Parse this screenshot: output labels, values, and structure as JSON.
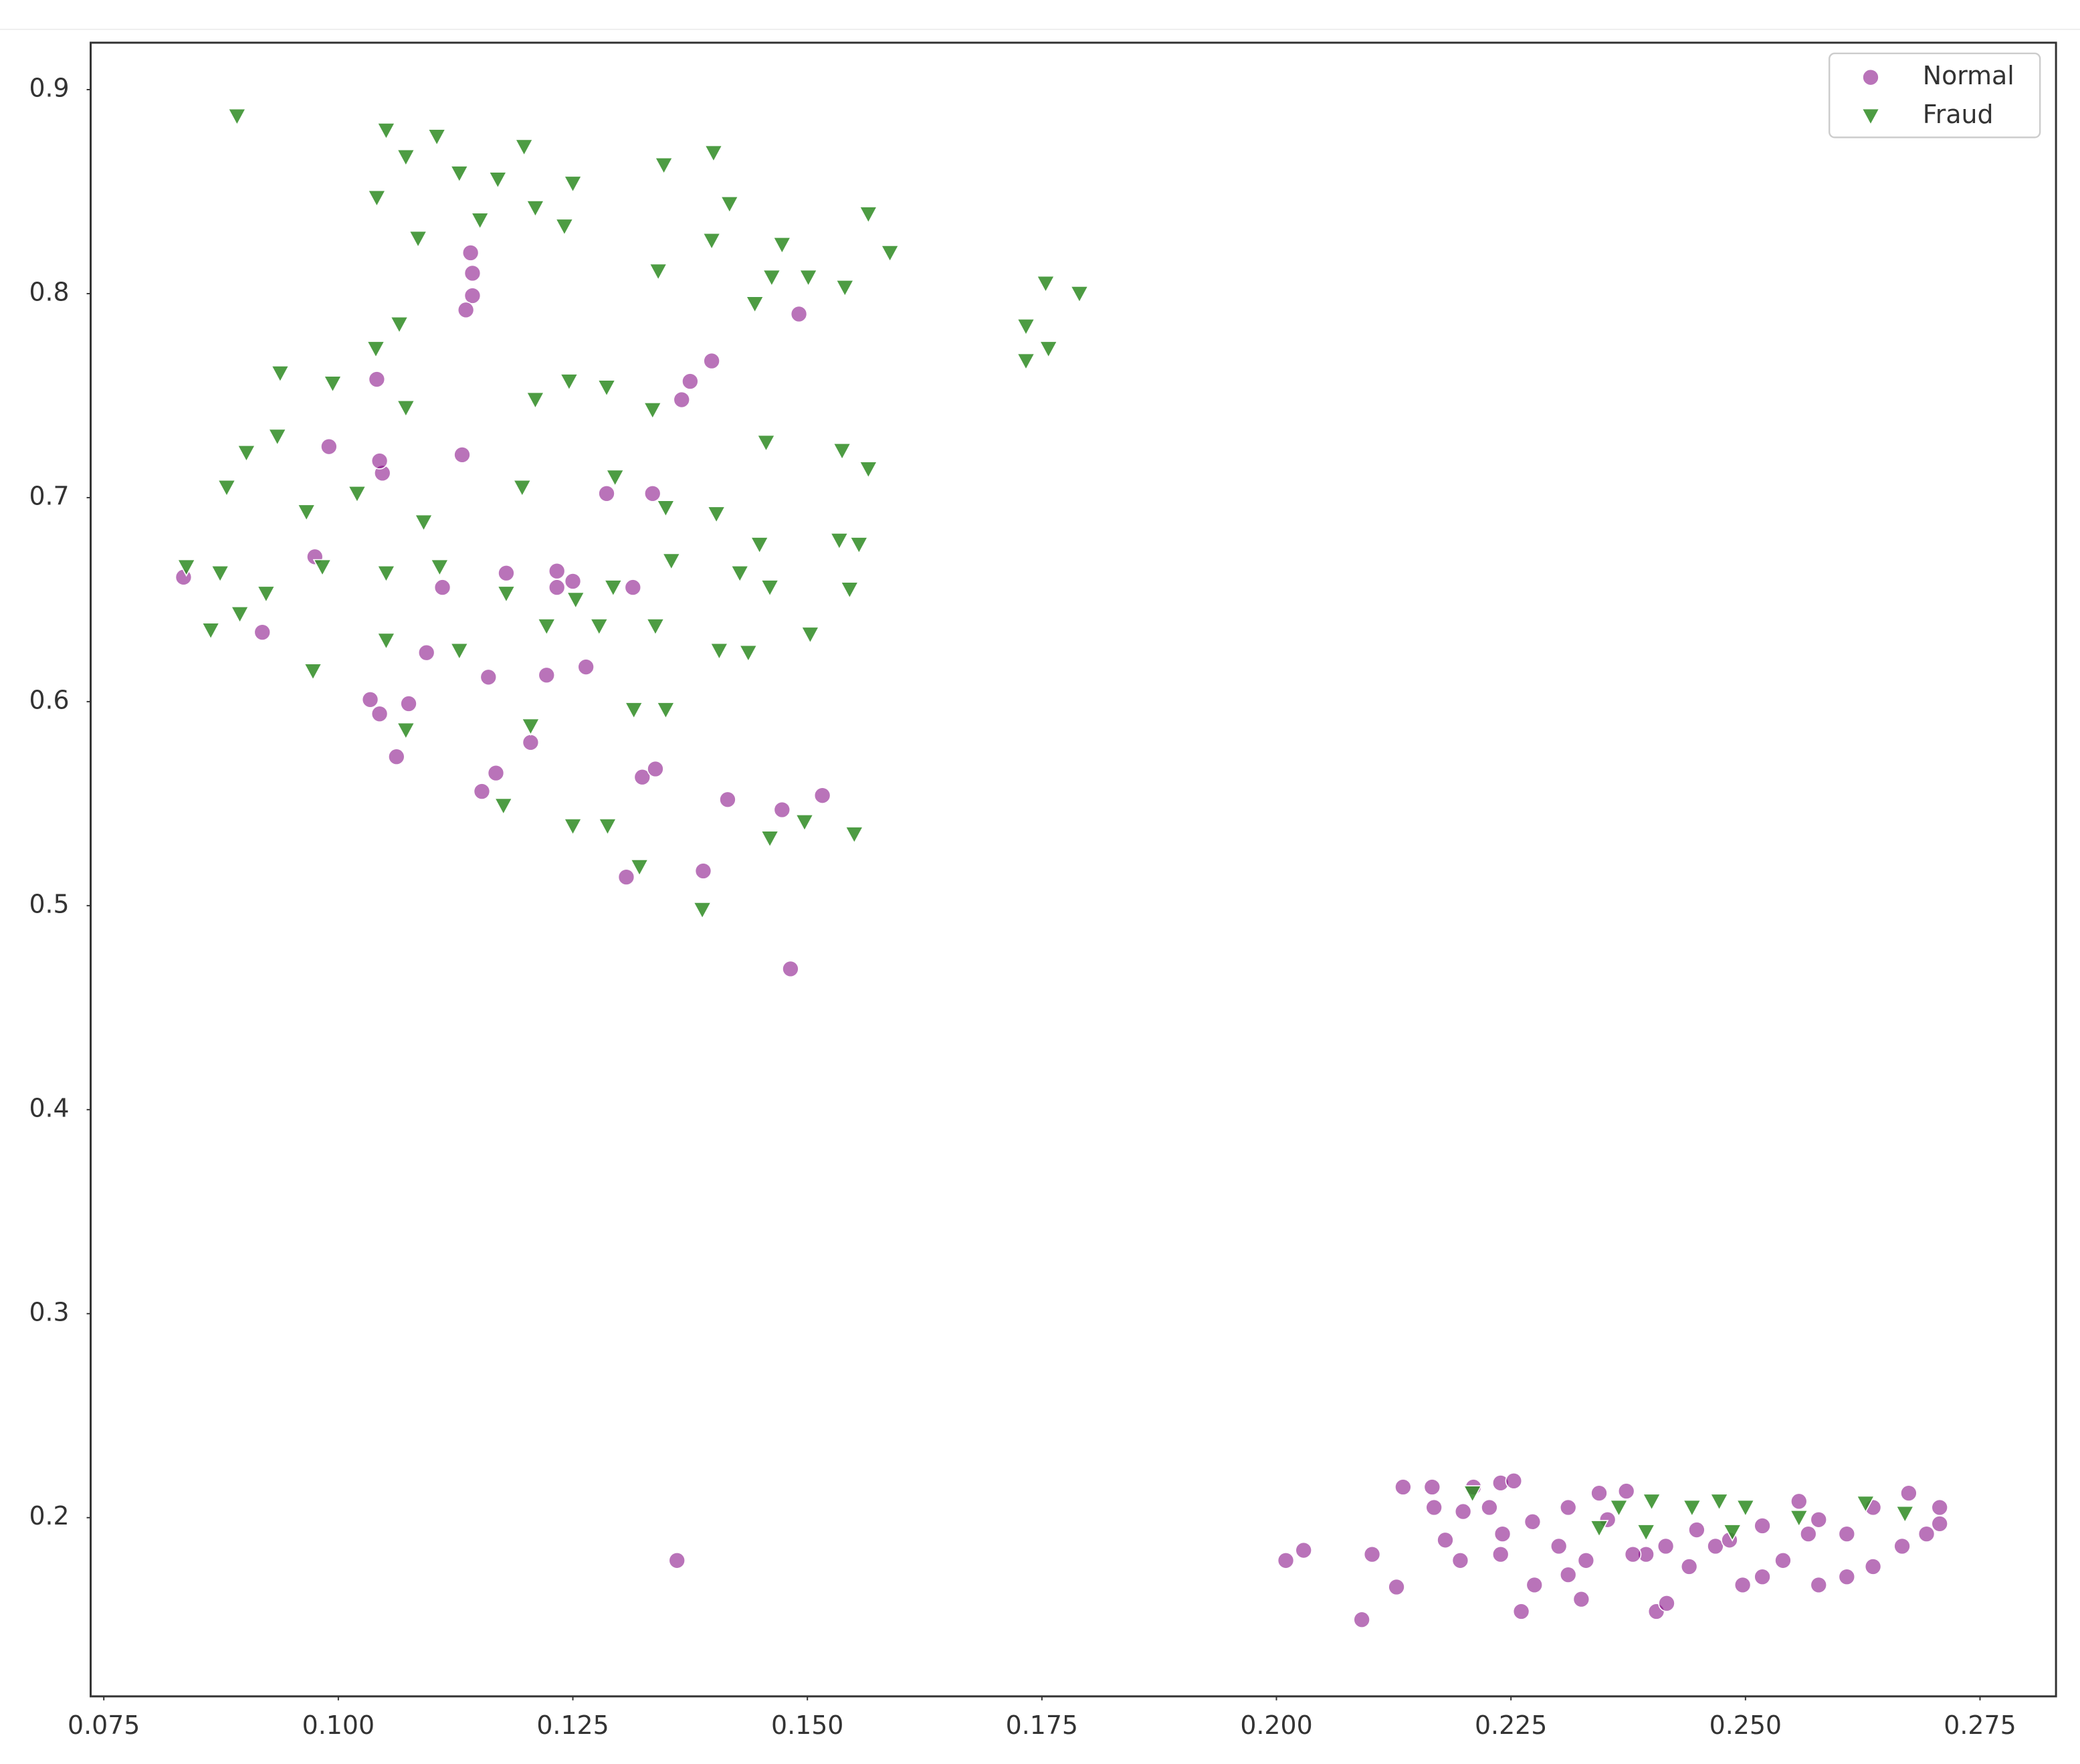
{
  "chart_data": {
    "type": "scatter",
    "xlim": [
      0.0736,
      0.2831
    ],
    "ylim": [
      0.1124,
      0.923
    ],
    "xticks": [
      0.075,
      {
        "value": 0.1,
        "label": "0.100"
      },
      0.125,
      {
        "value": 0.15,
        "label": "0.150"
      },
      0.175,
      {
        "value": 0.2,
        "label": "0.200"
      },
      0.225,
      {
        "value": 0.25,
        "label": "0.250"
      },
      0.275
    ],
    "yticks": [
      0.2,
      0.3,
      0.4,
      0.5,
      0.6,
      0.7,
      0.8,
      0.9
    ],
    "grid": false,
    "legend": "upper right",
    "series": [
      {
        "name": "Normal",
        "color": "#800080",
        "marker": "circle",
        "x": [
          0.1141,
          0.1143,
          0.1143,
          0.1136,
          0.1047,
          0.1044,
          0.1041,
          0.1398,
          0.1375,
          0.1366,
          0.1491,
          0.099,
          0.1132,
          0.0975,
          0.0835,
          0.1111,
          0.1179,
          0.1233,
          0.1233,
          0.125,
          0.1314,
          0.1335,
          0.1286,
          0.0919,
          0.1094,
          0.1222,
          0.1264,
          0.116,
          0.1034,
          0.1075,
          0.1044,
          0.1062,
          0.1205,
          0.1168,
          0.1153,
          0.1324,
          0.1338,
          0.1415,
          0.1473,
          0.1516,
          0.1307,
          0.1389,
          0.1482,
          0.1361,
          0.201,
          0.2029,
          0.2091,
          0.2102,
          0.2128,
          0.2135,
          0.2166,
          0.218,
          0.2196,
          0.2168,
          0.221,
          0.2239,
          0.2253,
          0.2261,
          0.2239,
          0.2275,
          0.2311,
          0.2325,
          0.2353,
          0.2311,
          0.2394,
          0.2405,
          0.2416,
          0.244,
          0.2468,
          0.2497,
          0.2518,
          0.254,
          0.2567,
          0.2578,
          0.2608,
          0.2636,
          0.2667,
          0.2693,
          0.2707,
          0.2707,
          0.2674,
          0.2636,
          0.2608,
          0.2578,
          0.2557,
          0.2518,
          0.2483,
          0.2448,
          0.2415,
          0.238,
          0.2344,
          0.2373,
          0.2273,
          0.2227,
          0.2241,
          0.2199,
          0.2301,
          0.233
        ],
        "y": [
          0.82,
          0.81,
          0.799,
          0.792,
          0.712,
          0.718,
          0.758,
          0.767,
          0.757,
          0.748,
          0.79,
          0.725,
          0.721,
          0.671,
          0.661,
          0.656,
          0.663,
          0.656,
          0.664,
          0.659,
          0.656,
          0.702,
          0.702,
          0.634,
          0.624,
          0.613,
          0.617,
          0.612,
          0.601,
          0.599,
          0.594,
          0.573,
          0.58,
          0.565,
          0.556,
          0.563,
          0.567,
          0.552,
          0.547,
          0.554,
          0.514,
          0.517,
          0.469,
          0.179,
          0.179,
          0.184,
          0.15,
          0.182,
          0.166,
          0.215,
          0.215,
          0.189,
          0.179,
          0.205,
          0.215,
          0.217,
          0.218,
          0.154,
          0.182,
          0.167,
          0.172,
          0.16,
          0.199,
          0.205,
          0.182,
          0.154,
          0.158,
          0.176,
          0.186,
          0.167,
          0.171,
          0.179,
          0.192,
          0.167,
          0.171,
          0.176,
          0.186,
          0.192,
          0.205,
          0.197,
          0.212,
          0.205,
          0.192,
          0.199,
          0.208,
          0.196,
          0.189,
          0.194,
          0.186,
          0.182,
          0.212,
          0.213,
          0.198,
          0.205,
          0.192,
          0.203,
          0.186,
          0.179
        ]
      },
      {
        "name": "Fraud",
        "color": "#2e8b22",
        "marker": "triangle_down",
        "x": [
          0.0892,
          0.1051,
          0.1105,
          0.1198,
          0.14,
          0.1347,
          0.1072,
          0.1129,
          0.117,
          0.1041,
          0.125,
          0.1417,
          0.1565,
          0.1151,
          0.121,
          0.1085,
          0.1241,
          0.1398,
          0.1473,
          0.1588,
          0.1341,
          0.1462,
          0.1501,
          0.154,
          0.1444,
          0.1754,
          0.179,
          0.1733,
          0.1757,
          0.1733,
          0.1065,
          0.104,
          0.0938,
          0.0994,
          0.1246,
          0.1286,
          0.121,
          0.1335,
          0.1072,
          0.1456,
          0.1537,
          0.1565,
          0.0902,
          0.0935,
          0.0881,
          0.0966,
          0.102,
          0.1091,
          0.1196,
          0.1295,
          0.1349,
          0.1403,
          0.1449,
          0.1534,
          0.1555,
          0.0838,
          0.0874,
          0.0923,
          0.0983,
          0.1051,
          0.1108,
          0.1179,
          0.1253,
          0.1293,
          0.1355,
          0.1428,
          0.146,
          0.1545,
          0.0864,
          0.0895,
          0.0973,
          0.1051,
          0.1129,
          0.1222,
          0.1278,
          0.1338,
          0.1406,
          0.1437,
          0.1503,
          0.1072,
          0.1205,
          0.1315,
          0.1349,
          0.125,
          0.1287,
          0.146,
          0.1497,
          0.155,
          0.1321,
          0.1388,
          0.1176,
          0.2209,
          0.2365,
          0.24,
          0.2443,
          0.25,
          0.2557,
          0.2628,
          0.267,
          0.2344,
          0.2394,
          0.2486,
          0.2472
        ],
        "y": [
          0.887,
          0.88,
          0.877,
          0.872,
          0.869,
          0.863,
          0.867,
          0.859,
          0.856,
          0.847,
          0.854,
          0.844,
          0.839,
          0.836,
          0.842,
          0.827,
          0.833,
          0.826,
          0.824,
          0.82,
          0.811,
          0.808,
          0.808,
          0.803,
          0.795,
          0.805,
          0.8,
          0.784,
          0.773,
          0.767,
          0.785,
          0.773,
          0.761,
          0.756,
          0.757,
          0.754,
          0.748,
          0.743,
          0.744,
          0.727,
          0.723,
          0.714,
          0.722,
          0.73,
          0.705,
          0.693,
          0.702,
          0.688,
          0.705,
          0.71,
          0.695,
          0.692,
          0.677,
          0.679,
          0.677,
          0.666,
          0.663,
          0.653,
          0.666,
          0.663,
          0.666,
          0.653,
          0.65,
          0.656,
          0.669,
          0.663,
          0.656,
          0.655,
          0.635,
          0.643,
          0.615,
          0.63,
          0.625,
          0.637,
          0.637,
          0.637,
          0.625,
          0.624,
          0.633,
          0.586,
          0.588,
          0.596,
          0.596,
          0.539,
          0.539,
          0.533,
          0.541,
          0.535,
          0.519,
          0.498,
          0.549,
          0.212,
          0.205,
          0.208,
          0.205,
          0.205,
          0.2,
          0.207,
          0.202,
          0.195,
          0.193,
          0.193,
          0.208
        ]
      }
    ]
  }
}
